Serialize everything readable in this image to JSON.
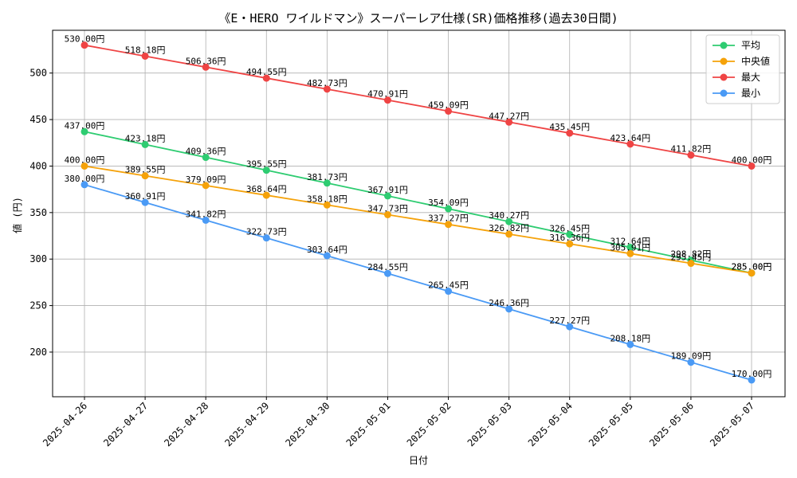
{
  "chart_data": {
    "type": "line",
    "title": "《E・HERO ワイルドマン》スーパーレア仕様(SR)価格推移(過去30日間)",
    "xlabel": "日付",
    "ylabel": "値 (円)",
    "x": [
      "2025-04-26",
      "2025-04-27",
      "2025-04-28",
      "2025-04-29",
      "2025-04-30",
      "2025-05-01",
      "2025-05-02",
      "2025-05-03",
      "2025-05-04",
      "2025-05-05",
      "2025-05-06",
      "2025-05-07"
    ],
    "ylim": [
      152,
      546
    ],
    "yticks": [
      200,
      250,
      300,
      350,
      400,
      450,
      500
    ],
    "grid": true,
    "legend_position": "top-right",
    "series": [
      {
        "name": "平均",
        "color": "#2ecc71",
        "values": [
          437.0,
          423.18,
          409.36,
          395.55,
          381.73,
          367.91,
          354.09,
          340.27,
          326.45,
          312.64,
          298.82,
          285.0
        ],
        "labels": [
          "437.00円",
          "423.18円",
          "409.36円",
          "395.55円",
          "381.73円",
          "367.91円",
          "354.09円",
          "340.27円",
          "326.45円",
          "312.64円",
          "298.82円",
          "285.00円"
        ]
      },
      {
        "name": "中央値",
        "color": "#f5a20a",
        "values": [
          400.0,
          389.55,
          379.09,
          368.64,
          358.18,
          347.73,
          337.27,
          326.82,
          316.36,
          305.91,
          295.45,
          285.0
        ],
        "labels": [
          "400.00円",
          "389.55円",
          "379.09円",
          "368.64円",
          "358.18円",
          "347.73円",
          "337.27円",
          "326.82円",
          "316.36円",
          "305.91円",
          "295.45円",
          "285.00円"
        ]
      },
      {
        "name": "最大",
        "color": "#ef4444",
        "values": [
          530.0,
          518.18,
          506.36,
          494.55,
          482.73,
          470.91,
          459.09,
          447.27,
          435.45,
          423.64,
          411.82,
          400.0
        ],
        "labels": [
          "530.00円",
          "518.18円",
          "506.36円",
          "494.55円",
          "482.73円",
          "470.91円",
          "459.09円",
          "447.27円",
          "435.45円",
          "423.64円",
          "411.82円",
          "400.00円"
        ]
      },
      {
        "name": "最小",
        "color": "#4a9af5",
        "values": [
          380.0,
          360.91,
          341.82,
          322.73,
          303.64,
          284.55,
          265.45,
          246.36,
          227.27,
          208.18,
          189.09,
          170.0
        ],
        "labels": [
          "380.00円",
          "360.91円",
          "341.82円",
          "322.73円",
          "303.64円",
          "284.55円",
          "265.45円",
          "246.36円",
          "227.27円",
          "208.18円",
          "189.09円",
          "170.00円"
        ]
      }
    ]
  }
}
